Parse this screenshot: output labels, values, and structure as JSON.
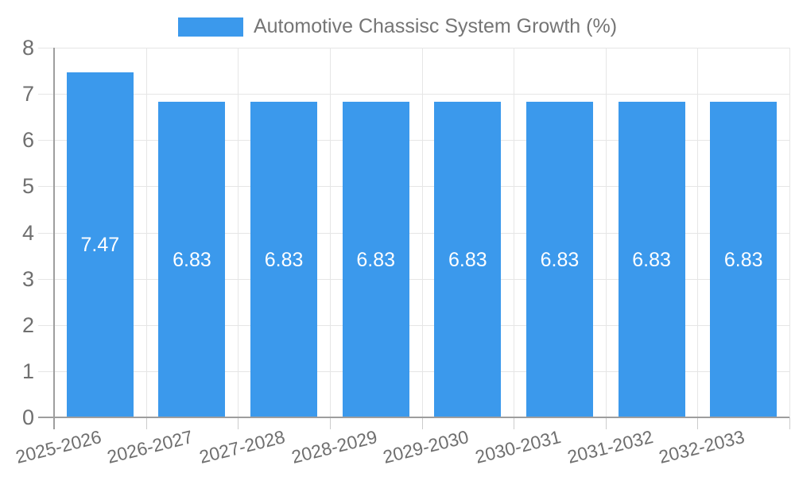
{
  "legend": {
    "label": "Automotive Chassisc System Growth (%)"
  },
  "chart_data": {
    "type": "bar",
    "title": "Automotive Chassisc System Growth (%)",
    "categories": [
      "2025-2026",
      "2026-2027",
      "2027-2028",
      "2028-2029",
      "2029-2030",
      "2030-2031",
      "2031-2032",
      "2032-2033"
    ],
    "values": [
      7.47,
      6.83,
      6.83,
      6.83,
      6.83,
      6.83,
      6.83,
      6.83
    ],
    "value_labels": [
      "7.47",
      "6.83",
      "6.83",
      "6.83",
      "6.83",
      "6.83",
      "6.83",
      "6.83"
    ],
    "xlabel": "",
    "ylabel": "",
    "ylim": [
      0,
      8
    ],
    "yticks": [
      0,
      1,
      2,
      3,
      4,
      5,
      6,
      7,
      8
    ],
    "grid": true,
    "legend_position": "top-center",
    "bar_color": "#3B99EC",
    "gridline_color": "#E6E6E6",
    "axis_color": "#9E9E9E",
    "bottom_tick_color": "#CCCCCC",
    "tick_label_color": "#6F6F6F",
    "value_label_color": "#FFFFFF"
  }
}
